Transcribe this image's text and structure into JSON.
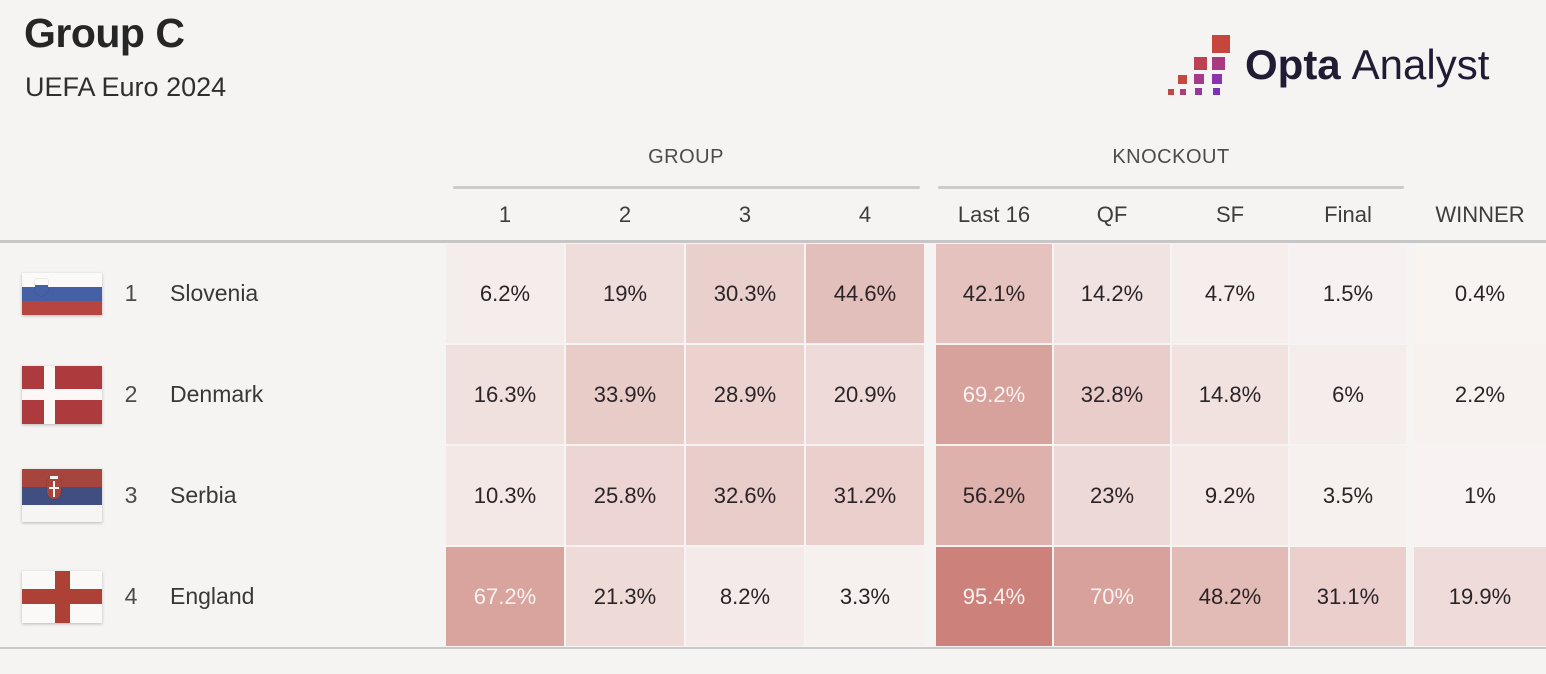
{
  "header": {
    "title": "Group C",
    "subtitle": "UEFA Euro 2024"
  },
  "logo": {
    "text_bold": "Opta",
    "text_light": "Analyst",
    "text_color": "#201c33",
    "mark_colors": [
      "#c6463d",
      "#bc4253",
      "#a83a7d",
      "#c24a41",
      "#a53c89",
      "#8c34ad",
      "#bf4a43",
      "#ab3f74",
      "#9438a0",
      "#7d30ba"
    ]
  },
  "flags": {
    "slovenia": {
      "white": "#fbfaf9",
      "blue": "#4660a6",
      "red": "#b5453e"
    },
    "denmark": {
      "red": "#ad3a3c",
      "white": "#fbf8f7"
    },
    "serbia": {
      "red": "#a6453e",
      "blue": "#3f4f80",
      "white": "#f7f5f4"
    },
    "england": {
      "white": "#fbf9f8",
      "red": "#ad4136"
    }
  },
  "chart_data": {
    "type": "heatmap",
    "title": "Group C",
    "subtitle": "UEFA Euro 2024",
    "column_groups": [
      {
        "label": "GROUP",
        "columns": [
          "1",
          "2",
          "3",
          "4"
        ]
      },
      {
        "label": "KNOCKOUT",
        "columns": [
          "Last 16",
          "QF",
          "SF",
          "Final"
        ]
      },
      {
        "label": "",
        "columns": [
          "WINNER"
        ]
      }
    ],
    "columns": [
      "1",
      "2",
      "3",
      "4",
      "Last 16",
      "QF",
      "SF",
      "Final",
      "WINNER"
    ],
    "rows": [
      {
        "position": "1",
        "team": "Slovenia",
        "flag": "slovenia",
        "values_pct": [
          6.2,
          19,
          30.3,
          44.6,
          42.1,
          14.2,
          4.7,
          1.5,
          0.4
        ],
        "labels": [
          "6.2%",
          "19%",
          "30.3%",
          "44.6%",
          "42.1%",
          "14.2%",
          "4.7%",
          "1.5%",
          "0.4%"
        ]
      },
      {
        "position": "2",
        "team": "Denmark",
        "flag": "denmark",
        "values_pct": [
          16.3,
          33.9,
          28.9,
          20.9,
          69.2,
          32.8,
          14.8,
          6,
          2.2
        ],
        "labels": [
          "16.3%",
          "33.9%",
          "28.9%",
          "20.9%",
          "69.2%",
          "32.8%",
          "14.8%",
          "6%",
          "2.2%"
        ]
      },
      {
        "position": "3",
        "team": "Serbia",
        "flag": "serbia",
        "values_pct": [
          10.3,
          25.8,
          32.6,
          31.2,
          56.2,
          23,
          9.2,
          3.5,
          1
        ],
        "labels": [
          "10.3%",
          "25.8%",
          "32.6%",
          "31.2%",
          "56.2%",
          "23%",
          "9.2%",
          "3.5%",
          "1%"
        ]
      },
      {
        "position": "4",
        "team": "England",
        "flag": "england",
        "values_pct": [
          67.2,
          21.3,
          8.2,
          3.3,
          95.4,
          70,
          48.2,
          31.1,
          19.9
        ],
        "labels": [
          "67.2%",
          "21.3%",
          "8.2%",
          "3.3%",
          "95.4%",
          "70%",
          "48.2%",
          "31.1%",
          "19.9%"
        ]
      }
    ],
    "colormap": {
      "low": "#f8f4f3",
      "high": "#ca7d75",
      "text_dark": "#2b2427",
      "text_light": "#f9f2f1",
      "light_text_threshold_pct": 60
    },
    "legend": "none",
    "grid": "cell-gaps"
  }
}
